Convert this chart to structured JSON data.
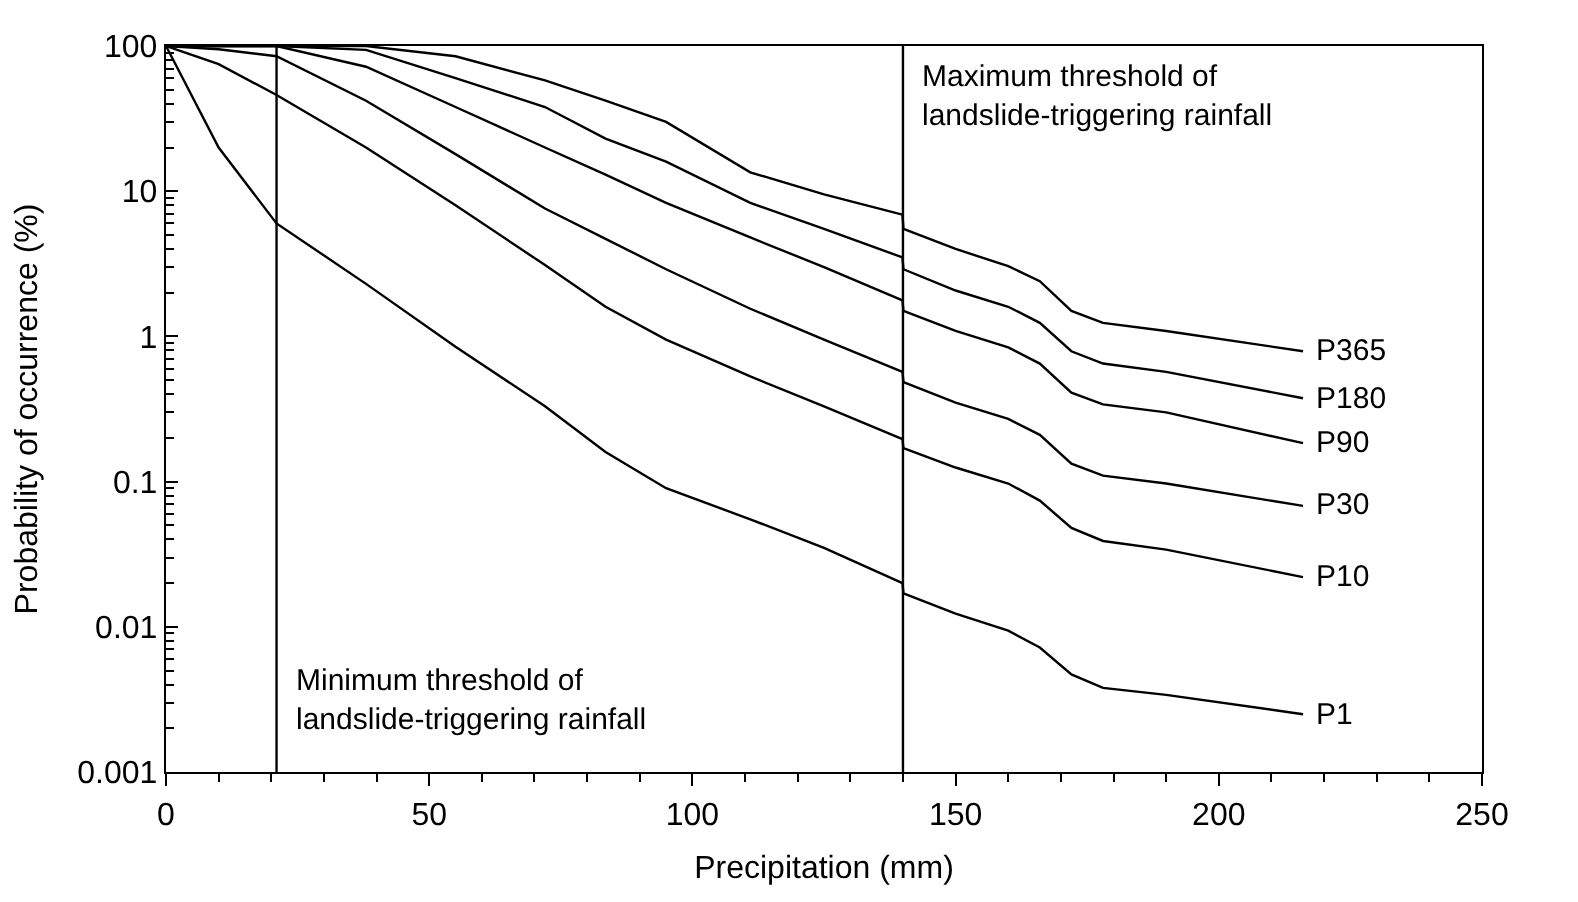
{
  "chart_data": {
    "type": "line",
    "xlabel": "Precipitation (mm)",
    "ylabel": "Probability of occurrence (%)",
    "x": [
      0,
      10,
      21,
      38,
      55,
      72,
      83.5,
      95,
      111,
      125,
      139.9,
      140.1,
      150,
      160,
      166,
      172,
      178,
      190,
      216
    ],
    "series": [
      {
        "name": "P365",
        "color": "#000000",
        "values": [
          100,
          100,
          100,
          100,
          85,
          58,
          42,
          30,
          13.5,
          9.5,
          6.9,
          5.5,
          4.0,
          3.05,
          2.4,
          1.5,
          1.24,
          1.09,
          0.79
        ]
      },
      {
        "name": "P180",
        "color": "#000000",
        "values": [
          100,
          100,
          100,
          94,
          60,
          38,
          23,
          16,
          8.3,
          5.5,
          3.5,
          2.9,
          2.07,
          1.6,
          1.24,
          0.79,
          0.65,
          0.57,
          0.375
        ]
      },
      {
        "name": "P90",
        "color": "#000000",
        "values": [
          100,
          100,
          100,
          72,
          38,
          20,
          13,
          8.3,
          4.8,
          3.0,
          1.77,
          1.5,
          1.09,
          0.84,
          0.65,
          0.41,
          0.34,
          0.3,
          0.184
        ]
      },
      {
        "name": "P30",
        "color": "#000000",
        "values": [
          100,
          95,
          85,
          42,
          18,
          7.6,
          4.7,
          2.9,
          1.55,
          0.95,
          0.57,
          0.485,
          0.35,
          0.27,
          0.21,
          0.133,
          0.11,
          0.097,
          0.068
        ]
      },
      {
        "name": "P10",
        "color": "#000000",
        "values": [
          100,
          75,
          46,
          20,
          8,
          3.1,
          1.6,
          0.95,
          0.53,
          0.33,
          0.196,
          0.17,
          0.125,
          0.097,
          0.074,
          0.048,
          0.039,
          0.034,
          0.022
        ]
      },
      {
        "name": "P1",
        "color": "#000000",
        "values": [
          100,
          20,
          6,
          2.3,
          0.85,
          0.33,
          0.16,
          0.09,
          0.055,
          0.035,
          0.02,
          0.017,
          0.0123,
          0.0094,
          0.0072,
          0.0047,
          0.0038,
          0.0034,
          0.0025
        ]
      }
    ],
    "xlim": [
      0,
      250
    ],
    "xticks": [
      0,
      50,
      100,
      150,
      200,
      250
    ],
    "ylim": [
      0.001,
      100
    ],
    "yticks": [
      0.001,
      0.01,
      0.1,
      1,
      10,
      100
    ],
    "log": "y",
    "legend": false,
    "marker": "none",
    "line_style": "solid",
    "ref_lines": [
      {
        "axis": "x",
        "value": 21,
        "label": "Minimum threshold of\nlandslide-triggering rainfall",
        "color": "#000000"
      },
      {
        "axis": "x",
        "value": 140,
        "label": "Maximum threshold of\nlandslide-triggering rainfall",
        "color": "#000000"
      }
    ]
  }
}
